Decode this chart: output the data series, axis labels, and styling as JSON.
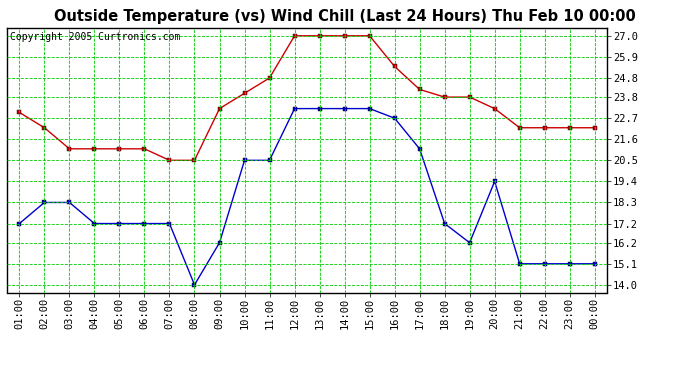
{
  "title": "Outside Temperature (vs) Wind Chill (Last 24 Hours) Thu Feb 10 00:00",
  "copyright": "Copyright 2005 Curtronics.com",
  "x_labels": [
    "01:00",
    "02:00",
    "03:00",
    "04:00",
    "05:00",
    "06:00",
    "07:00",
    "08:00",
    "09:00",
    "10:00",
    "11:00",
    "12:00",
    "13:00",
    "14:00",
    "15:00",
    "16:00",
    "17:00",
    "18:00",
    "19:00",
    "20:00",
    "21:00",
    "22:00",
    "23:00",
    "00:00"
  ],
  "y_ticks": [
    14.0,
    15.1,
    16.2,
    17.2,
    18.3,
    19.4,
    20.5,
    21.6,
    22.7,
    23.8,
    24.8,
    25.9,
    27.0
  ],
  "ylim": [
    13.6,
    27.4
  ],
  "red_data": [
    23.0,
    22.2,
    21.1,
    21.1,
    21.1,
    21.1,
    20.5,
    20.5,
    23.2,
    24.0,
    24.8,
    27.0,
    27.0,
    27.0,
    27.0,
    25.4,
    24.2,
    23.8,
    23.8,
    23.2,
    22.2,
    22.2,
    22.2,
    22.2
  ],
  "blue_data": [
    17.2,
    18.3,
    18.3,
    17.2,
    17.2,
    17.2,
    17.2,
    14.0,
    16.2,
    20.5,
    20.5,
    23.2,
    23.2,
    23.2,
    23.2,
    22.7,
    21.1,
    17.2,
    16.2,
    19.4,
    15.1,
    15.1,
    15.1,
    15.1
  ],
  "red_color": "#cc0000",
  "blue_color": "#0000cc",
  "grid_color": "#00cc00",
  "bg_color": "#ffffff",
  "plot_bg_color": "#ffffff",
  "title_fontsize": 10.5,
  "copyright_fontsize": 7,
  "tick_fontsize": 7.5,
  "marker_size": 2.5,
  "line_width": 1.0
}
